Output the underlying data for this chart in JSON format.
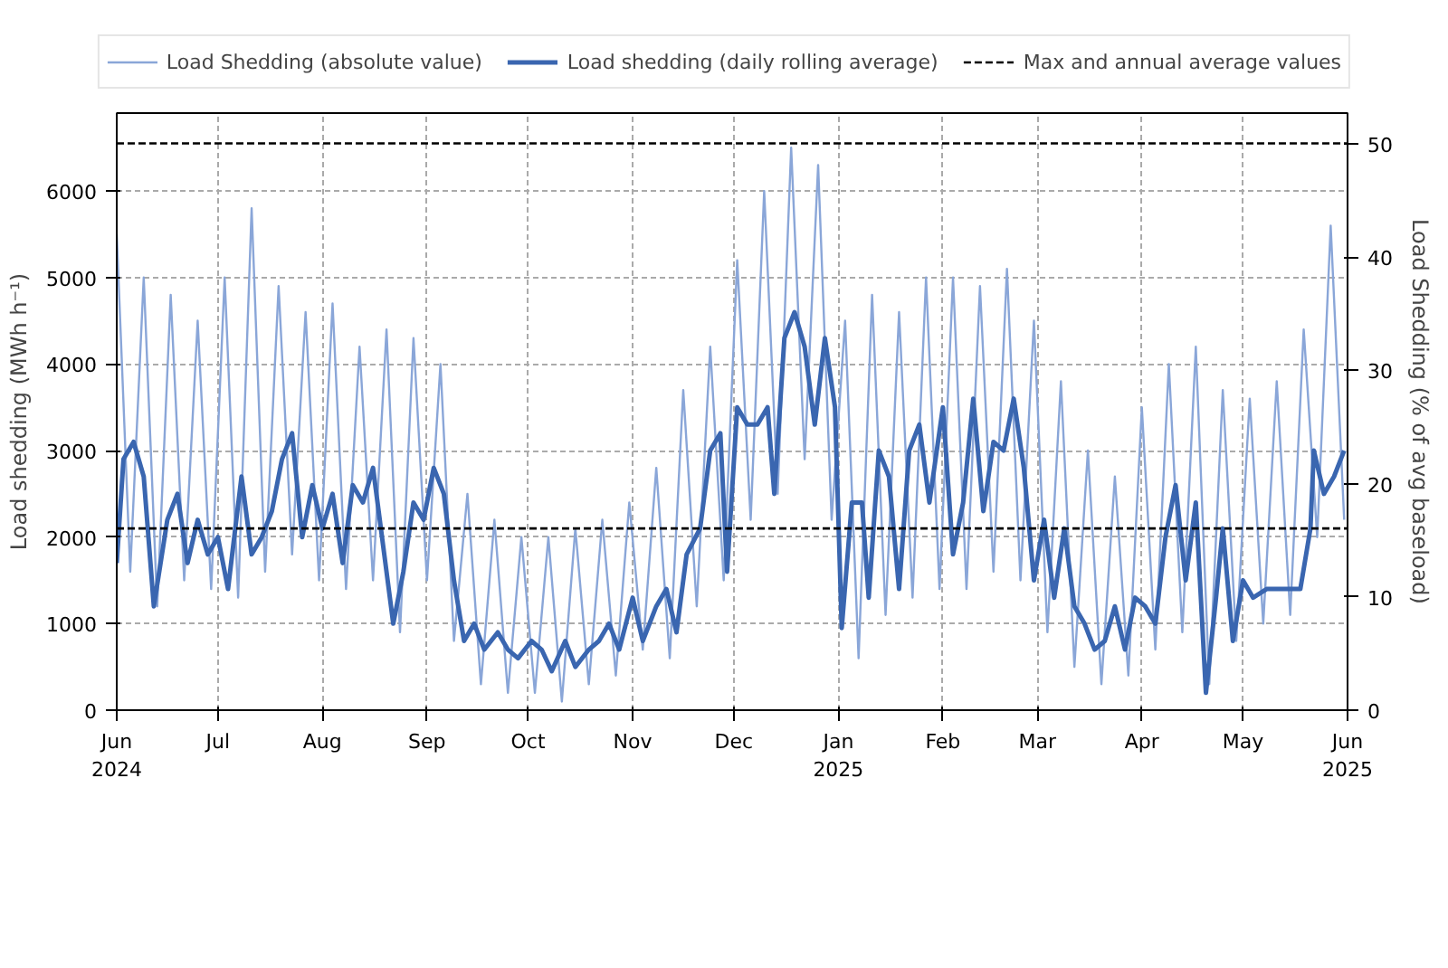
{
  "chart_data": {
    "type": "line",
    "ylabel": "Load shedding (MWh h⁻¹)",
    "y2label": "Load Shedding (% of avg baseload)",
    "xlim": [
      "2024-06-01",
      "2025-06-01"
    ],
    "xticks": [
      {
        "value": "2024-06-01",
        "label": "Jun\n2024"
      },
      {
        "value": "2024-07-01",
        "label": "Jul"
      },
      {
        "value": "2024-08-01",
        "label": "Aug"
      },
      {
        "value": "2024-09-01",
        "label": "Sep"
      },
      {
        "value": "2024-10-01",
        "label": "Oct"
      },
      {
        "value": "2024-11-01",
        "label": "Nov"
      },
      {
        "value": "2024-12-01",
        "label": "Dec"
      },
      {
        "value": "2025-01-01",
        "label": "Jan\n2025"
      },
      {
        "value": "2025-02-01",
        "label": "Feb"
      },
      {
        "value": "2025-03-01",
        "label": "Mar"
      },
      {
        "value": "2025-04-01",
        "label": "Apr"
      },
      {
        "value": "2025-05-01",
        "label": "May"
      },
      {
        "value": "2025-06-01",
        "label": "Jun\n2025"
      }
    ],
    "ylim": [
      0,
      6900
    ],
    "yticks": [
      0,
      1000,
      2000,
      3000,
      4000,
      5000,
      6000
    ],
    "y2lim": [
      0,
      52.7
    ],
    "y2ticks": [
      0,
      10,
      20,
      30,
      40,
      50
    ],
    "grid": true,
    "legend": "top",
    "series": [
      {
        "name": "Load Shedding (absolute value)",
        "color": "#8aa6d8",
        "line_style": "solid",
        "x": [
          "2024-06-01",
          "2024-06-05",
          "2024-06-09",
          "2024-06-13",
          "2024-06-17",
          "2024-06-21",
          "2024-06-25",
          "2024-06-29",
          "2024-07-03",
          "2024-07-07",
          "2024-07-11",
          "2024-07-15",
          "2024-07-19",
          "2024-07-23",
          "2024-07-27",
          "2024-07-31",
          "2024-08-04",
          "2024-08-08",
          "2024-08-12",
          "2024-08-16",
          "2024-08-20",
          "2024-08-24",
          "2024-08-28",
          "2024-09-01",
          "2024-09-05",
          "2024-09-09",
          "2024-09-13",
          "2024-09-17",
          "2024-09-21",
          "2024-09-25",
          "2024-09-29",
          "2024-10-03",
          "2024-10-07",
          "2024-10-11",
          "2024-10-15",
          "2024-10-19",
          "2024-10-23",
          "2024-10-27",
          "2024-10-31",
          "2024-11-04",
          "2024-11-08",
          "2024-11-12",
          "2024-11-16",
          "2024-11-20",
          "2024-11-24",
          "2024-11-28",
          "2024-12-02",
          "2024-12-06",
          "2024-12-10",
          "2024-12-14",
          "2024-12-18",
          "2024-12-22",
          "2024-12-26",
          "2024-12-30",
          "2025-01-03",
          "2025-01-07",
          "2025-01-11",
          "2025-01-15",
          "2025-01-19",
          "2025-01-23",
          "2025-01-27",
          "2025-01-31",
          "2025-02-04",
          "2025-02-08",
          "2025-02-12",
          "2025-02-16",
          "2025-02-20",
          "2025-02-24",
          "2025-02-28",
          "2025-03-04",
          "2025-03-08",
          "2025-03-12",
          "2025-03-16",
          "2025-03-20",
          "2025-03-24",
          "2025-03-28",
          "2025-04-01",
          "2025-04-05",
          "2025-04-09",
          "2025-04-13",
          "2025-04-17",
          "2025-04-21",
          "2025-04-25",
          "2025-04-29",
          "2025-05-03",
          "2025-05-07",
          "2025-05-11",
          "2025-05-15",
          "2025-05-19",
          "2025-05-23",
          "2025-05-27",
          "2025-05-31"
        ],
        "values": [
          5500,
          1600,
          5000,
          1200,
          4800,
          1500,
          4500,
          1400,
          5000,
          1300,
          5800,
          1600,
          4900,
          1800,
          4600,
          1500,
          4700,
          1400,
          4200,
          1500,
          4400,
          900,
          4300,
          1500,
          4000,
          800,
          2500,
          300,
          2200,
          200,
          2000,
          200,
          2000,
          100,
          2100,
          300,
          2200,
          400,
          2400,
          700,
          2800,
          600,
          3700,
          1200,
          4200,
          1500,
          5200,
          2200,
          6000,
          2500,
          6500,
          2900,
          6300,
          2200,
          4500,
          600,
          4800,
          1100,
          4600,
          1300,
          5000,
          1400,
          5000,
          1400,
          4900,
          1600,
          5100,
          1500,
          4500,
          900,
          3800,
          500,
          3000,
          300,
          2700,
          400,
          3500,
          700,
          4000,
          900,
          4200,
          300,
          3700,
          800,
          3600,
          1000,
          3800,
          1100,
          4400,
          2000,
          5600,
          2200
        ]
      },
      {
        "name": "Load shedding (daily rolling average)",
        "color": "#3a66b0",
        "line_style": "solid",
        "x": [
          "2024-06-01",
          "2024-06-03",
          "2024-06-06",
          "2024-06-09",
          "2024-06-12",
          "2024-06-16",
          "2024-06-19",
          "2024-06-22",
          "2024-06-25",
          "2024-06-28",
          "2024-07-01",
          "2024-07-04",
          "2024-07-08",
          "2024-07-11",
          "2024-07-14",
          "2024-07-17",
          "2024-07-20",
          "2024-07-23",
          "2024-07-26",
          "2024-07-29",
          "2024-08-01",
          "2024-08-04",
          "2024-08-07",
          "2024-08-10",
          "2024-08-13",
          "2024-08-16",
          "2024-08-19",
          "2024-08-22",
          "2024-08-25",
          "2024-08-28",
          "2024-08-31",
          "2024-09-03",
          "2024-09-06",
          "2024-09-09",
          "2024-09-12",
          "2024-09-15",
          "2024-09-18",
          "2024-09-22",
          "2024-09-25",
          "2024-09-28",
          "2024-10-02",
          "2024-10-05",
          "2024-10-08",
          "2024-10-12",
          "2024-10-15",
          "2024-10-19",
          "2024-10-22",
          "2024-10-25",
          "2024-10-28",
          "2024-11-01",
          "2024-11-04",
          "2024-11-08",
          "2024-11-11",
          "2024-11-14",
          "2024-11-17",
          "2024-11-21",
          "2024-11-24",
          "2024-11-27",
          "2024-11-29",
          "2024-12-02",
          "2024-12-05",
          "2024-12-08",
          "2024-12-11",
          "2024-12-13",
          "2024-12-16",
          "2024-12-19",
          "2024-12-22",
          "2024-12-25",
          "2024-12-28",
          "2024-12-31",
          "2025-01-02",
          "2025-01-05",
          "2025-01-08",
          "2025-01-10",
          "2025-01-13",
          "2025-01-16",
          "2025-01-19",
          "2025-01-22",
          "2025-01-25",
          "2025-01-28",
          "2025-02-01",
          "2025-02-04",
          "2025-02-07",
          "2025-02-10",
          "2025-02-13",
          "2025-02-16",
          "2025-02-19",
          "2025-02-22",
          "2025-02-25",
          "2025-02-28",
          "2025-03-03",
          "2025-03-06",
          "2025-03-09",
          "2025-03-12",
          "2025-03-15",
          "2025-03-18",
          "2025-03-21",
          "2025-03-24",
          "2025-03-27",
          "2025-03-30",
          "2025-04-02",
          "2025-04-05",
          "2025-04-08",
          "2025-04-11",
          "2025-04-14",
          "2025-04-17",
          "2025-04-20",
          "2025-04-23",
          "2025-04-25",
          "2025-04-28",
          "2025-05-01",
          "2025-05-04",
          "2025-05-08",
          "2025-05-11",
          "2025-05-15",
          "2025-05-18",
          "2025-05-21",
          "2025-05-22",
          "2025-05-25",
          "2025-05-28",
          "2025-05-31"
        ],
        "values": [
          1700,
          2900,
          3100,
          2700,
          1200,
          2200,
          2500,
          1700,
          2200,
          1800,
          2000,
          1400,
          2700,
          1800,
          2000,
          2300,
          2900,
          3200,
          2000,
          2600,
          2100,
          2500,
          1700,
          2600,
          2400,
          2800,
          1900,
          1000,
          1600,
          2400,
          2200,
          2800,
          2500,
          1500,
          800,
          1000,
          700,
          900,
          700,
          600,
          800,
          700,
          450,
          800,
          500,
          700,
          800,
          1000,
          700,
          1300,
          800,
          1200,
          1400,
          900,
          1800,
          2100,
          3000,
          3200,
          1600,
          3500,
          3300,
          3300,
          3500,
          2500,
          4300,
          4600,
          4200,
          3300,
          4300,
          3500,
          950,
          2400,
          2400,
          1300,
          3000,
          2700,
          1400,
          3000,
          3300,
          2400,
          3500,
          1800,
          2400,
          3600,
          2300,
          3100,
          3000,
          3600,
          2800,
          1500,
          2200,
          1300,
          2100,
          1200,
          1000,
          700,
          800,
          1200,
          700,
          1300,
          1200,
          1000,
          2000,
          2600,
          1500,
          2400,
          200,
          1300,
          2100,
          800,
          1500,
          1300,
          1400,
          1400,
          1400,
          1400,
          2100,
          3000,
          2500,
          2700,
          3000
        ]
      }
    ],
    "ref_lines": [
      {
        "axis": "y",
        "value": 6550,
        "label": "Max and annual average values",
        "color": "#000000",
        "line_style": "dashed"
      },
      {
        "axis": "y",
        "value": 2100,
        "color": "#000000",
        "line_style": "dashed"
      }
    ]
  }
}
